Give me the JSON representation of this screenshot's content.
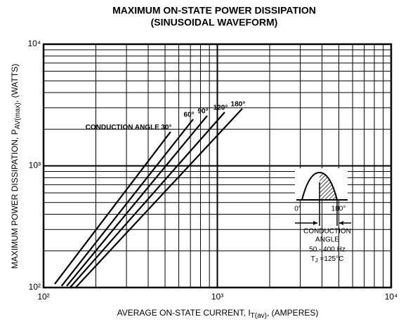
{
  "chart_data": {
    "type": "line",
    "title": "MAXIMUM ON-STATE POWER DISSIPATION",
    "subtitle": "(SINUSOIDAL WAVEFORM)",
    "x_label": {
      "main": "AVERAGE ON-STATE CURRENT, I",
      "sub": "T(av)",
      "tail": ", (AMPERES)"
    },
    "y_label": {
      "main": "MAXIMUM POWER DISSIPATION, P",
      "sub": "AV(max)",
      "tail": ", (WATTS)"
    },
    "log_x": true,
    "log_y": true,
    "grid": true,
    "xlim": [
      100,
      10000
    ],
    "ylim": [
      100,
      10000
    ],
    "xticks": [
      {
        "value": 100,
        "label": "10²"
      },
      {
        "value": 1000,
        "label": "10³"
      },
      {
        "value": 10000,
        "label": "10⁴"
      }
    ],
    "yticks": [
      {
        "value": 100,
        "label": "10²"
      },
      {
        "value": 1000,
        "label": "10³"
      },
      {
        "value": 10000,
        "label": "10⁴"
      }
    ],
    "xminor": [
      200,
      300,
      400,
      500,
      600,
      700,
      800,
      900,
      2000,
      3000,
      4000,
      5000,
      6000,
      7000,
      8000,
      9000
    ],
    "yminor": [
      200,
      300,
      400,
      500,
      600,
      700,
      800,
      900,
      2000,
      3000,
      4000,
      5000,
      6000,
      7000,
      8000,
      9000
    ],
    "conduction_angle_label": "CONDUCTION ANGLE",
    "series": [
      {
        "name": "30°",
        "color": "#000000",
        "x": [
          116,
          538
        ],
        "values": [
          107,
          1905
        ]
      },
      {
        "name": "60°",
        "color": "#000000",
        "x": [
          127,
          726
        ],
        "values": [
          103,
          2417
        ]
      },
      {
        "name": "90°",
        "color": "#000000",
        "x": [
          136,
          874
        ],
        "values": [
          103,
          2582
        ]
      },
      {
        "name": "120°",
        "color": "#000000",
        "x": [
          142,
          1102
        ],
        "values": [
          100,
          2761
        ]
      },
      {
        "name": "180°",
        "color": "#000000",
        "x": [
          153,
          1390
        ],
        "values": [
          100,
          2951
        ]
      }
    ],
    "inset": {
      "start": "0°",
      "end": "180°",
      "line1": "CONDUCTION",
      "line2": "ANGLE",
      "freq": "50 - 400 Hz",
      "tj_main": "T",
      "tj_sub": "J",
      "tj_tail": " =125°C"
    }
  }
}
